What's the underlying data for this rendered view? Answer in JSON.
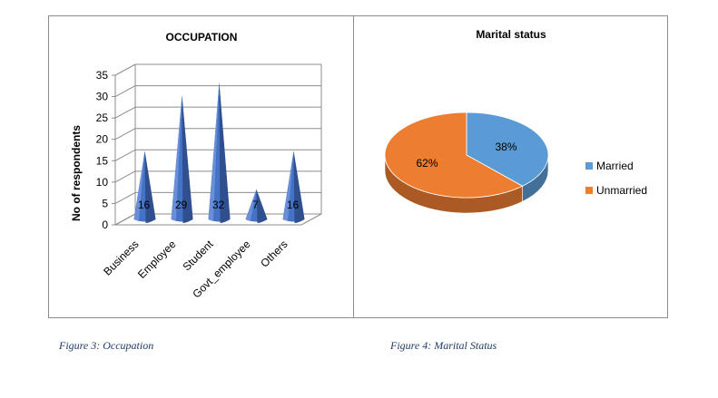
{
  "chart_data": [
    {
      "type": "bar",
      "title": "OCCUPATION",
      "xlabel": "",
      "ylabel": "No of respondents",
      "categories": [
        "Business",
        "Employee",
        "Student",
        "Govt_employee",
        "Others"
      ],
      "values": [
        16,
        29,
        32,
        7,
        16
      ],
      "data_labels": [
        "16",
        "29",
        "32",
        "7",
        "16"
      ],
      "ylim": [
        0,
        35
      ],
      "yticks": [
        0,
        5,
        10,
        15,
        20,
        25,
        30,
        35
      ],
      "ytick_labels": [
        "0",
        "5",
        "10",
        "15",
        "20",
        "25",
        "30",
        "35"
      ],
      "grid": true,
      "style": "3d-cone",
      "color": "#4472c4"
    },
    {
      "type": "pie",
      "title": "Marital status",
      "categories": [
        "Married",
        "Unmarried"
      ],
      "values": [
        38,
        62
      ],
      "data_labels": [
        "38%",
        "62%"
      ],
      "colors": [
        "#5b9bd5",
        "#ed7d31"
      ],
      "legend": "right",
      "style": "3d"
    }
  ],
  "captions": {
    "left": "Figure 3: Occupation",
    "right": "Figure 4: Marital Status"
  }
}
